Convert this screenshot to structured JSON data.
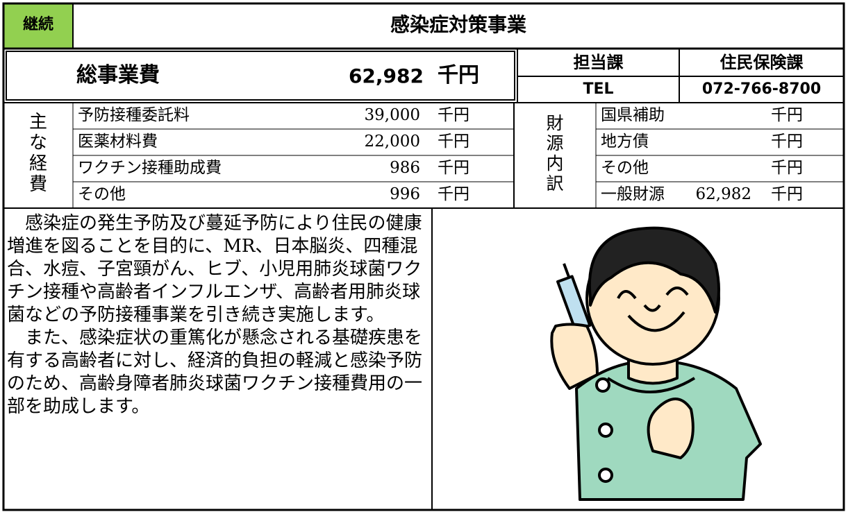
{
  "header": {
    "status": "継続",
    "title": "感染症対策事業"
  },
  "total": {
    "label": "総事業費",
    "amount": "62,982",
    "unit": "千円"
  },
  "department": {
    "label": "担当課",
    "name": "住民保険課",
    "tel_label": "TEL",
    "tel": "072-766-8700"
  },
  "expenses": {
    "label": [
      "主",
      "な",
      "経",
      "費"
    ],
    "rows": [
      [
        "予防接種委託料",
        "39,000",
        "千円"
      ],
      [
        "医薬材料費",
        "22,000",
        "千円"
      ],
      [
        "ワクチン接種助成費",
        "986",
        "千円"
      ],
      [
        "その他",
        "996",
        "千円"
      ]
    ]
  },
  "funding": {
    "label": [
      "財",
      "源",
      "内",
      "訳"
    ],
    "rows": [
      [
        "国県補助",
        "",
        "千円"
      ],
      [
        "地方債",
        "",
        "千円"
      ],
      [
        "その他",
        "",
        "千円"
      ],
      [
        "一般財源",
        "62,982",
        "千円"
      ]
    ]
  },
  "description": [
    "感染症の発生予防及び蔓延予防により住民の健康増進を図ることを目的に、MR、日本脳炎、四種混合、水痘、子宮頸がん、ヒブ、小児用肺炎球菌ワクチン接種や高齢者インフルエンザ、高齢者用肺炎球菌などの予防接種事業を引き続き実施します。",
    "また、感染症状の重篤化が懸念される基礎疾患を有する高齢者に対し、経済的負担の軽減と感染予防のため、高齢身障者肺炎球菌ワクチン接種費用の一部を助成します。"
  ]
}
